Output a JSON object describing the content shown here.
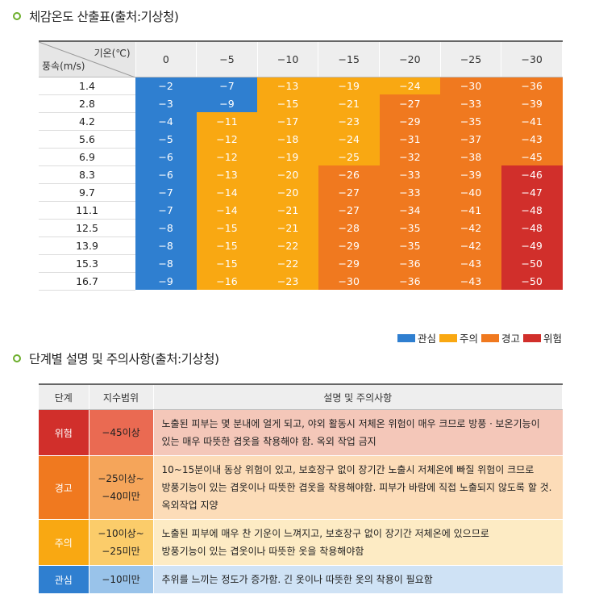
{
  "heading1": "체감온도 산출표(출처:기상청)",
  "heading2": "단계별 설명 및 주의사항(출처:기상청)",
  "colors": {
    "관심": "#2f7fd0",
    "주의": "#f9a812",
    "경고": "#f0791f",
    "위험": "#d12f2b"
  },
  "wind_chill": {
    "corner_temp_label": "기온(℃)",
    "corner_wind_label": "풍속(m/s)",
    "temperatures": [
      "0",
      "−5",
      "−10",
      "−15",
      "−20",
      "−25",
      "−30"
    ],
    "rows": [
      {
        "speed": "1.4",
        "values": [
          "−2",
          "−7",
          "−13",
          "−19",
          "−24",
          "−30",
          "−36"
        ],
        "levels": [
          "관심",
          "관심",
          "주의",
          "주의",
          "주의",
          "경고",
          "경고"
        ]
      },
      {
        "speed": "2.8",
        "values": [
          "−3",
          "−9",
          "−15",
          "−21",
          "−27",
          "−33",
          "−39"
        ],
        "levels": [
          "관심",
          "관심",
          "주의",
          "주의",
          "경고",
          "경고",
          "경고"
        ]
      },
      {
        "speed": "4.2",
        "values": [
          "−4",
          "−11",
          "−17",
          "−23",
          "−29",
          "−35",
          "−41"
        ],
        "levels": [
          "관심",
          "주의",
          "주의",
          "주의",
          "경고",
          "경고",
          "경고"
        ]
      },
      {
        "speed": "5.6",
        "values": [
          "−5",
          "−12",
          "−18",
          "−24",
          "−31",
          "−37",
          "−43"
        ],
        "levels": [
          "관심",
          "주의",
          "주의",
          "주의",
          "경고",
          "경고",
          "경고"
        ]
      },
      {
        "speed": "6.9",
        "values": [
          "−6",
          "−12",
          "−19",
          "−25",
          "−32",
          "−38",
          "−45"
        ],
        "levels": [
          "관심",
          "주의",
          "주의",
          "주의",
          "경고",
          "경고",
          "경고"
        ]
      },
      {
        "speed": "8.3",
        "values": [
          "−6",
          "−13",
          "−20",
          "−26",
          "−33",
          "−39",
          "−46"
        ],
        "levels": [
          "관심",
          "주의",
          "주의",
          "경고",
          "경고",
          "경고",
          "위험"
        ]
      },
      {
        "speed": "9.7",
        "values": [
          "−7",
          "−14",
          "−20",
          "−27",
          "−33",
          "−40",
          "−47"
        ],
        "levels": [
          "관심",
          "주의",
          "주의",
          "경고",
          "경고",
          "경고",
          "위험"
        ]
      },
      {
        "speed": "11.1",
        "values": [
          "−7",
          "−14",
          "−21",
          "−27",
          "−34",
          "−41",
          "−48"
        ],
        "levels": [
          "관심",
          "주의",
          "주의",
          "경고",
          "경고",
          "경고",
          "위험"
        ]
      },
      {
        "speed": "12.5",
        "values": [
          "−8",
          "−15",
          "−21",
          "−28",
          "−35",
          "−42",
          "−48"
        ],
        "levels": [
          "관심",
          "주의",
          "주의",
          "경고",
          "경고",
          "경고",
          "위험"
        ]
      },
      {
        "speed": "13.9",
        "values": [
          "−8",
          "−15",
          "−22",
          "−29",
          "−35",
          "−42",
          "−49"
        ],
        "levels": [
          "관심",
          "주의",
          "주의",
          "경고",
          "경고",
          "경고",
          "위험"
        ]
      },
      {
        "speed": "15.3",
        "values": [
          "−8",
          "−15",
          "−22",
          "−29",
          "−36",
          "−43",
          "−50"
        ],
        "levels": [
          "관심",
          "주의",
          "주의",
          "경고",
          "경고",
          "경고",
          "위험"
        ]
      },
      {
        "speed": "16.7",
        "values": [
          "−9",
          "−16",
          "−23",
          "−30",
          "−36",
          "−43",
          "−50"
        ],
        "levels": [
          "관심",
          "주의",
          "주의",
          "경고",
          "경고",
          "경고",
          "위험"
        ]
      }
    ]
  },
  "legend": [
    "관심",
    "주의",
    "경고",
    "위험"
  ],
  "stages": {
    "headers": [
      "단계",
      "지수범위",
      "설명 및 주의사항"
    ],
    "rows": [
      {
        "stage": "위험",
        "stage_color": "#d12f2b",
        "range_color": "#ea6a52",
        "desc_color": "#f4c7b9",
        "range_lines": [
          "−45이상"
        ],
        "desc_lines": [
          "노출된 피부는 몇 분내에 얼게 되고, 야외 활동시 저체온 위험이 매우 크므로 방풍ㆍ보온기능이",
          "있는 매우 따뜻한 겹옷을 착용해야 함. 옥외 작업 금지"
        ]
      },
      {
        "stage": "경고",
        "stage_color": "#f0791f",
        "range_color": "#f5a55a",
        "desc_color": "#fcdcb8",
        "range_lines": [
          "−25이상~",
          "−40미만"
        ],
        "desc_lines": [
          "10~15분이내 동상 위험이 있고, 보호장구 없이 장기간 노출시 저체온에 빠질 위험이 크므로",
          "방풍기능이 있는 겹옷이나 따뜻한 겹옷을 착용해야함. 피부가 바람에 직접 노출되지 않도록 할 것.",
          "옥외작업 지양"
        ]
      },
      {
        "stage": "주의",
        "stage_color": "#f9a812",
        "range_color": "#fbcc6a",
        "desc_color": "#fdebc4",
        "range_lines": [
          "−10이상~",
          "−25미만"
        ],
        "desc_lines": [
          "노출된 피부에 매우 찬 기운이 느껴지고, 보호장구 없이 장기간 저체온에 있으므로",
          "방풍기능이 있는 겹옷이나 따뜻한 옷을 착용해야함"
        ]
      },
      {
        "stage": "관심",
        "stage_color": "#2f7fd0",
        "range_color": "#99c3ea",
        "desc_color": "#cfe2f5",
        "range_lines": [
          "−10미만"
        ],
        "desc_lines": [
          "추위를 느끼는 정도가 증가함. 긴 옷이나 따뜻한 옷의 착용이 필요함"
        ]
      }
    ]
  }
}
